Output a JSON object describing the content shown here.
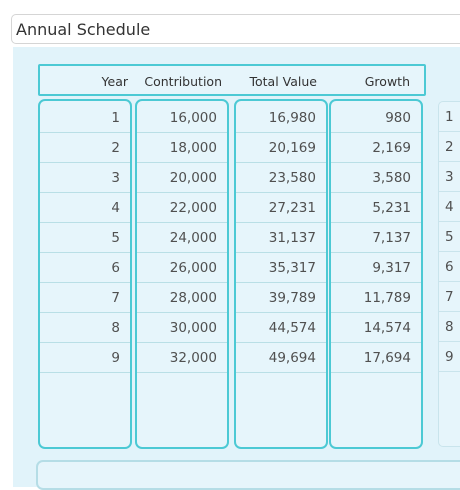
{
  "title": "Annual Schedule",
  "columns": [
    "Year",
    "Contribution",
    "Total Value",
    "Growth"
  ],
  "rows": [
    [
      "1",
      "16,000",
      "16,980",
      "980"
    ],
    [
      "2",
      "18,000",
      "20,169",
      "2,169"
    ],
    [
      "3",
      "20,000",
      "23,580",
      "3,580"
    ],
    [
      "4",
      "22,000",
      "27,231",
      "5,231"
    ],
    [
      "5",
      "24,000",
      "31,137",
      "7,137"
    ],
    [
      "6",
      "26,000",
      "35,317",
      "9,317"
    ],
    [
      "7",
      "28,000",
      "39,789",
      "11,789"
    ],
    [
      "8",
      "30,000",
      "44,574",
      "14,574"
    ],
    [
      "9",
      "32,000",
      "49,694",
      "17,694"
    ]
  ],
  "ghost_years": [
    "1",
    "2",
    "3",
    "4",
    "5",
    "6",
    "7",
    "8",
    "9"
  ]
}
